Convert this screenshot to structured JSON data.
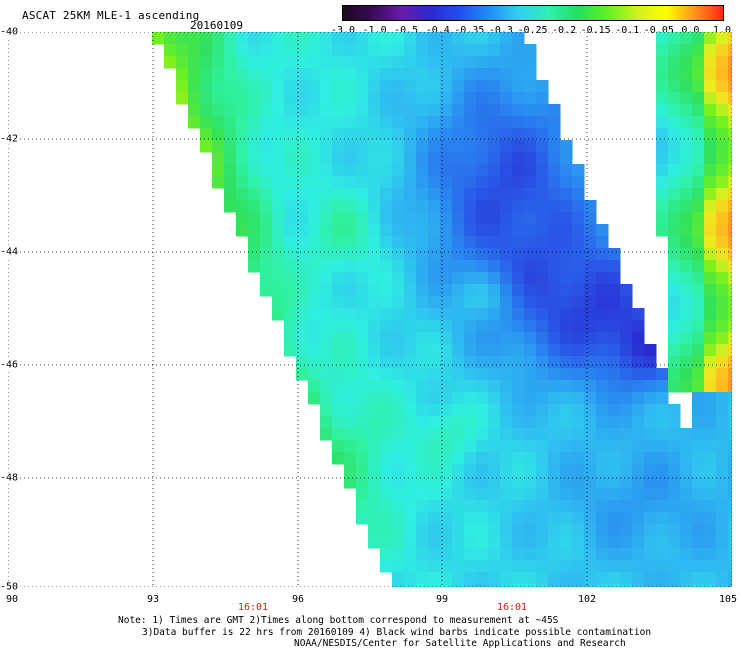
{
  "header": {
    "title": "ASCAT 25KM MLE-1 ascending",
    "date": "20160109"
  },
  "colorbar": {
    "ticks": [
      "-3.0",
      "-1.0",
      "-0.5",
      "-0.4",
      "-0.35",
      "-0.3",
      "-0.25",
      "-0.2",
      "-0.15",
      "-0.1",
      "-0.05",
      "0.0",
      "1.0"
    ],
    "colors": [
      "#1a0a1a",
      "#3a0a5a",
      "#6a1aaa",
      "#2a2ad0",
      "#2050f0",
      "#2090f5",
      "#30d0f0",
      "#30f0b0",
      "#20e060",
      "#60f020",
      "#d0f020",
      "#ffff00",
      "#ff9020",
      "#ff2010"
    ]
  },
  "map": {
    "lat_labels": [
      "-40",
      "-42",
      "-44",
      "-46",
      "-48",
      "-50"
    ],
    "lon_labels": [
      "90",
      "93",
      "96",
      "99",
      "102",
      "105"
    ],
    "time_labels": [
      "16:01",
      "16:01"
    ]
  },
  "footer": {
    "line1": "Note: 1) Times are GMT 2)Times along bottom correspond to measurement at ~45S",
    "line2": "3)Data buffer is 22 hrs from 20160109 4) Black wind barbs indicate possible contamination",
    "line3": "NOAA/NESDIS/Center for Satellite Applications and Research"
  }
}
